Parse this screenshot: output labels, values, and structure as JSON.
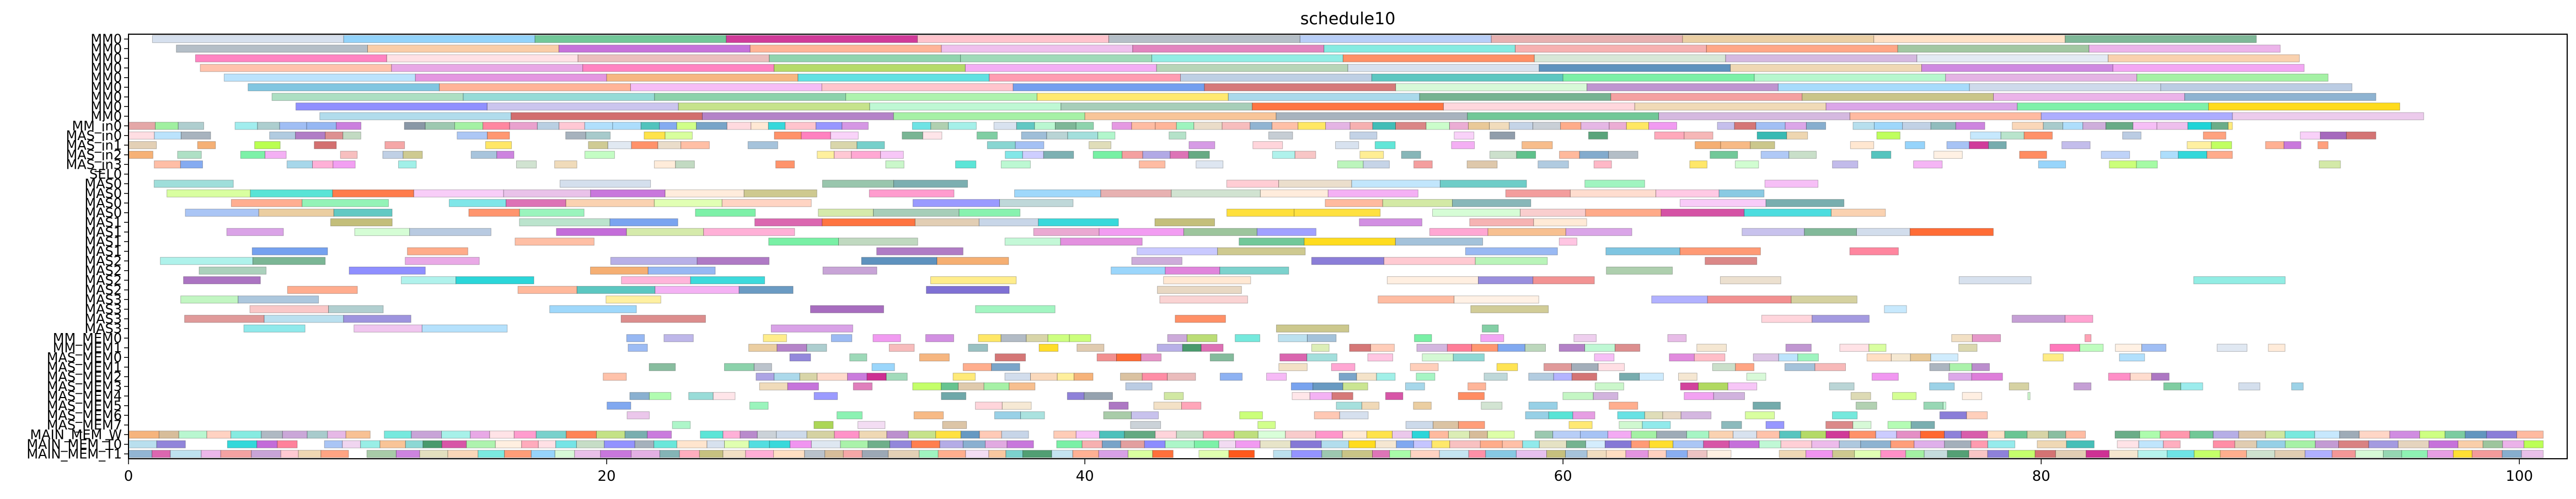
{
  "chart_data": {
    "type": "gantt",
    "title": "schedule10",
    "xlabel": "",
    "ylabel": "",
    "xlim": [
      0,
      102
    ],
    "x_ticks": [
      0,
      20,
      40,
      60,
      80,
      100
    ],
    "grid": false,
    "legend": "none",
    "rows": [
      "MM0",
      "MM0",
      "MM0",
      "MM0",
      "MM0",
      "MM0",
      "MM0",
      "MM0",
      "MM0",
      "MM_in0",
      "MAS_in0",
      "MAS_in1",
      "MAS_in2",
      "MAS_in3",
      "SEL0",
      "MAS0",
      "MAS0",
      "MAS0",
      "MAS0",
      "MAS1",
      "MAS1",
      "MAS1",
      "MAS1",
      "MAS2",
      "MAS2",
      "MAS2",
      "MAS2",
      "MAS3",
      "MAS3",
      "MAS3",
      "MAS3",
      "MM_MEM0",
      "MM_MEM1",
      "MAS_MEM0",
      "MAS_MEM1",
      "MAS_MEM2",
      "MAS_MEM3",
      "MAS_MEM4",
      "MAS_MEM5",
      "MAS_MEM6",
      "MAS_MEM7",
      "MAIN_MEM_W",
      "MAIN_MEM_T0",
      "MAIN_MEM_T1"
    ],
    "series_note": "Each row holds a sequence of colored task bars spanning roughly x=0 to x=102; individual bar bounds are estimated from the image.",
    "bars": [
      [
        0,
        [
          [
            1,
            9
          ],
          [
            9,
            17
          ],
          [
            17,
            25
          ],
          [
            25,
            33
          ],
          [
            33,
            41
          ],
          [
            41,
            49
          ],
          [
            49,
            57
          ],
          [
            57,
            65
          ],
          [
            65,
            73
          ],
          [
            73,
            81
          ],
          [
            81,
            89
          ]
        ]
      ],
      [
        1,
        [
          [
            2,
            10
          ],
          [
            10,
            18
          ],
          [
            18,
            26
          ],
          [
            26,
            34
          ],
          [
            34,
            42
          ],
          [
            42,
            50
          ],
          [
            50,
            58
          ],
          [
            58,
            66
          ],
          [
            66,
            74
          ],
          [
            74,
            82
          ],
          [
            82,
            90
          ]
        ]
      ],
      [
        2,
        [
          [
            2.8,
            10.8
          ],
          [
            10.8,
            18.8
          ],
          [
            18.8,
            26.8
          ],
          [
            26.8,
            34.8
          ],
          [
            34.8,
            42.8
          ],
          [
            42.8,
            50.8
          ],
          [
            50.8,
            58.8
          ],
          [
            58.8,
            66.8
          ],
          [
            66.8,
            74.8
          ],
          [
            74.8,
            82.8
          ],
          [
            82.8,
            90.8
          ]
        ]
      ],
      [
        3,
        [
          [
            3,
            11
          ],
          [
            11,
            19
          ],
          [
            19,
            27
          ],
          [
            27,
            35
          ],
          [
            35,
            43
          ],
          [
            43,
            51
          ],
          [
            51,
            59
          ],
          [
            59,
            67
          ],
          [
            67,
            75
          ],
          [
            75,
            83
          ],
          [
            83,
            91
          ]
        ]
      ],
      [
        4,
        [
          [
            4,
            12
          ],
          [
            12,
            20
          ],
          [
            20,
            28
          ],
          [
            28,
            36
          ],
          [
            36,
            44
          ],
          [
            44,
            52
          ],
          [
            52,
            60
          ],
          [
            60,
            68
          ],
          [
            68,
            76
          ],
          [
            76,
            84
          ],
          [
            84,
            92
          ]
        ]
      ],
      [
        5,
        [
          [
            5,
            13
          ],
          [
            13,
            21
          ],
          [
            21,
            29
          ],
          [
            29,
            37
          ],
          [
            37,
            45
          ],
          [
            45,
            53
          ],
          [
            53,
            61
          ],
          [
            61,
            69
          ],
          [
            69,
            77
          ],
          [
            77,
            85
          ],
          [
            85,
            93
          ]
        ]
      ],
      [
        6,
        [
          [
            6,
            14
          ],
          [
            14,
            22
          ],
          [
            22,
            30
          ],
          [
            30,
            38
          ],
          [
            38,
            46
          ],
          [
            46,
            54
          ],
          [
            54,
            62
          ],
          [
            62,
            70
          ],
          [
            70,
            78
          ],
          [
            78,
            86
          ],
          [
            86,
            94
          ]
        ]
      ],
      [
        7,
        [
          [
            7,
            15
          ],
          [
            15,
            23
          ],
          [
            23,
            31
          ],
          [
            31,
            39
          ],
          [
            39,
            47
          ],
          [
            47,
            55
          ],
          [
            55,
            63
          ],
          [
            63,
            71
          ],
          [
            71,
            79
          ],
          [
            79,
            87
          ],
          [
            87,
            95
          ]
        ]
      ],
      [
        8,
        [
          [
            8,
            16
          ],
          [
            16,
            24
          ],
          [
            24,
            32
          ],
          [
            32,
            40
          ],
          [
            40,
            48
          ],
          [
            48,
            56
          ],
          [
            56,
            64
          ],
          [
            64,
            72
          ],
          [
            72,
            80
          ],
          [
            80,
            88
          ],
          [
            88,
            96
          ]
        ]
      ]
    ]
  }
}
